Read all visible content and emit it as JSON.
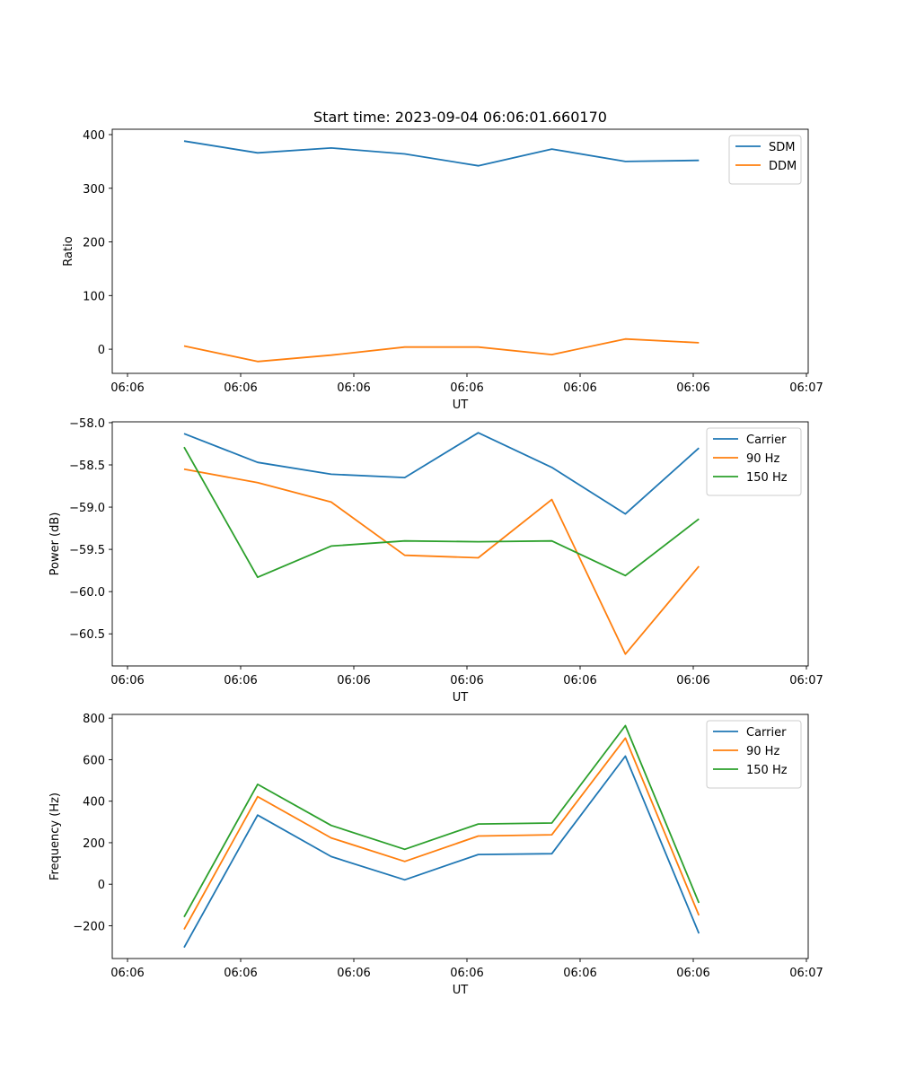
{
  "figure_title": "Start time: 2023-09-04 06:06:01.660170",
  "chart_data": [
    {
      "type": "line",
      "xlabel": "UT",
      "ylabel": "Ratio",
      "x": [
        0.5,
        1.15,
        1.8,
        2.45,
        3.1,
        3.75,
        4.4,
        5.05
      ],
      "xlim": [
        0,
        6
      ],
      "xticks": [
        0,
        1,
        2,
        3,
        4,
        5,
        6
      ],
      "xtick_labels": [
        "06:06",
        "06:06",
        "06:06",
        "06:06",
        "06:06",
        "06:06",
        "06:07"
      ],
      "ylim": [
        -45,
        410
      ],
      "yticks": [
        0,
        100,
        200,
        300,
        400
      ],
      "ytick_labels": [
        "0",
        "100",
        "200",
        "300",
        "400"
      ],
      "legend_position": "top-right",
      "series": [
        {
          "name": "SDM",
          "color": "#1f77b4",
          "values": [
            388,
            366,
            375,
            364,
            342,
            373,
            350,
            352
          ]
        },
        {
          "name": "DDM",
          "color": "#ff7f0e",
          "values": [
            6,
            -23,
            -11,
            4,
            4,
            -10,
            19,
            12
          ]
        }
      ]
    },
    {
      "type": "line",
      "xlabel": "UT",
      "ylabel": "Power (dB)",
      "x": [
        0.5,
        1.15,
        1.8,
        2.45,
        3.1,
        3.75,
        4.4,
        5.05
      ],
      "xlim": [
        0,
        6
      ],
      "xticks": [
        0,
        1,
        2,
        3,
        4,
        5,
        6
      ],
      "xtick_labels": [
        "06:06",
        "06:06",
        "06:06",
        "06:06",
        "06:06",
        "06:06",
        "06:07"
      ],
      "ylim": [
        -60.88,
        -57.99
      ],
      "yticks": [
        -58.0,
        -58.5,
        -59.0,
        -59.5,
        -60.0,
        -60.5
      ],
      "ytick_labels": [
        "−58.0",
        "−58.5",
        "−59.0",
        "−59.5",
        "−60.0",
        "−60.5"
      ],
      "legend_position": "top-right",
      "series": [
        {
          "name": "Carrier",
          "color": "#1f77b4",
          "values": [
            -58.13,
            -58.47,
            -58.61,
            -58.65,
            -58.12,
            -58.53,
            -59.08,
            -58.3
          ]
        },
        {
          "name": "90 Hz",
          "color": "#ff7f0e",
          "values": [
            -58.55,
            -58.71,
            -58.94,
            -59.57,
            -59.6,
            -58.91,
            -60.74,
            -59.7
          ]
        },
        {
          "name": "150 Hz",
          "color": "#2ca02c",
          "values": [
            -58.29,
            -59.83,
            -59.46,
            -59.4,
            -59.41,
            -59.4,
            -59.81,
            -59.14
          ]
        }
      ]
    },
    {
      "type": "line",
      "xlabel": "UT",
      "ylabel": "Frequency (Hz)",
      "x": [
        0.5,
        1.15,
        1.8,
        2.45,
        3.1,
        3.75,
        4.4,
        5.05
      ],
      "xlim": [
        0,
        6
      ],
      "xticks": [
        0,
        1,
        2,
        3,
        4,
        5,
        6
      ],
      "xtick_labels": [
        "06:06",
        "06:06",
        "06:06",
        "06:06",
        "06:06",
        "06:06",
        "06:07"
      ],
      "ylim": [
        -358,
        818
      ],
      "yticks": [
        -200,
        0,
        200,
        400,
        600,
        800
      ],
      "ytick_labels": [
        "−200",
        "0",
        "200",
        "400",
        "600",
        "800"
      ],
      "legend_position": "top-right",
      "series": [
        {
          "name": "Carrier",
          "color": "#1f77b4",
          "values": [
            -305,
            333,
            133,
            21,
            143,
            147,
            617,
            -237
          ]
        },
        {
          "name": "90 Hz",
          "color": "#ff7f0e",
          "values": [
            -218,
            422,
            223,
            110,
            232,
            238,
            704,
            -150
          ]
        },
        {
          "name": "150 Hz",
          "color": "#2ca02c",
          "values": [
            -158,
            481,
            283,
            168,
            290,
            295,
            764,
            -90
          ]
        }
      ]
    }
  ]
}
